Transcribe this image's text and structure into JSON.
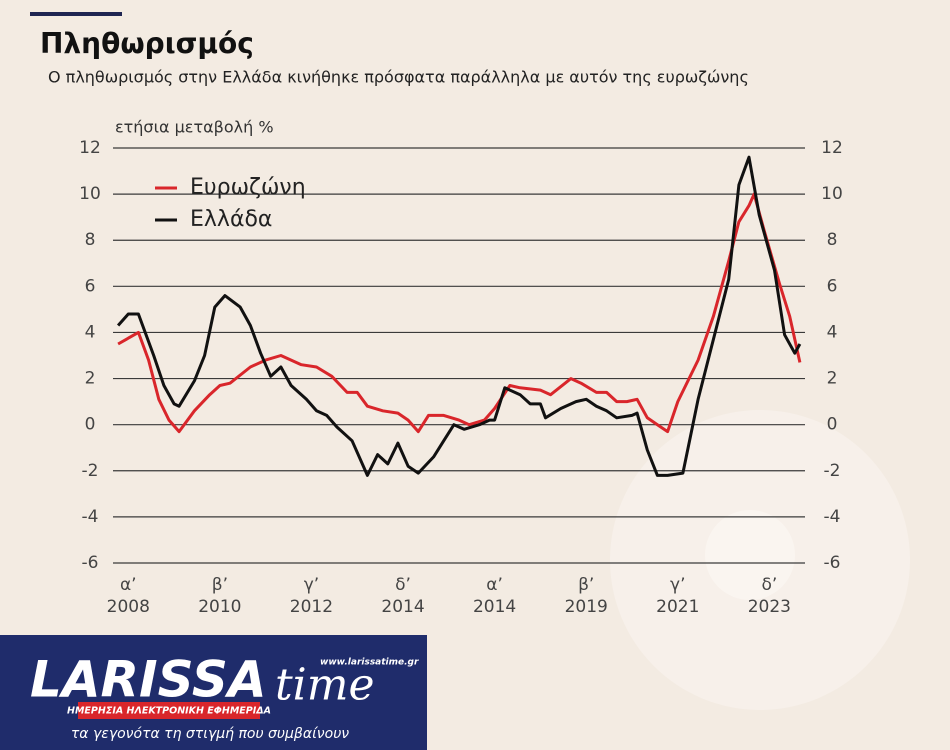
{
  "chart_data": {
    "type": "line",
    "title": "Πληθωρισμός",
    "subtitle": "Ο πληθωρισμός στην Ελλάδα κινήθηκε πρόσφατα παράλληλα με αυτόν της ευρωζώνης",
    "y_label": "ετήσια μεταβολή %",
    "xlim": [
      -1.5,
      66.5
    ],
    "xticks": [
      {
        "value": 0,
        "label": "α’\n2008"
      },
      {
        "value": 9,
        "label": "β’\n2010"
      },
      {
        "value": 18,
        "label": "γ’\n2012"
      },
      {
        "value": 27,
        "label": "δ’\n2014"
      },
      {
        "value": 36,
        "label": "α’\n2014"
      },
      {
        "value": 45,
        "label": "β’\n2019"
      },
      {
        "value": 54,
        "label": "γ’\n2021"
      },
      {
        "value": 63,
        "label": "δ’\n2023"
      }
    ],
    "ylim": [
      -6,
      12
    ],
    "yticks": [
      -6,
      -4,
      -2,
      0,
      2,
      4,
      6,
      8,
      10,
      12
    ],
    "y2lim": [
      -6,
      12
    ],
    "y2ticks": [
      -6,
      -4,
      -2,
      0,
      2,
      4,
      6,
      8,
      10,
      12
    ],
    "grid": true,
    "legend": "upper left",
    "series": [
      {
        "name": "Ευρωζώνη",
        "color": "#d9262b",
        "x": [
          -1,
          1,
          2,
          3,
          4,
          5,
          6.5,
          8,
          9,
          10,
          12,
          13.5,
          15,
          17,
          18.5,
          20,
          21.5,
          22.5,
          23.5,
          25,
          26.5,
          27.5,
          28.5,
          29.5,
          31,
          32.5,
          33.5,
          35,
          36,
          37.5,
          38.5,
          40.5,
          41.5,
          43.5,
          44.5,
          46,
          47,
          48,
          49,
          50,
          51,
          52,
          53,
          54,
          56,
          57.5,
          59,
          60,
          61,
          61.5,
          62.5,
          64,
          65,
          66
        ],
        "values": [
          3.5,
          4.0,
          2.8,
          1.1,
          0.2,
          -0.3,
          0.6,
          1.3,
          1.7,
          1.8,
          2.5,
          2.8,
          3.0,
          2.6,
          2.5,
          2.1,
          1.4,
          1.4,
          0.8,
          0.6,
          0.5,
          0.2,
          -0.3,
          0.4,
          0.4,
          0.2,
          0.0,
          0.2,
          0.7,
          1.7,
          1.6,
          1.5,
          1.3,
          2.0,
          1.8,
          1.4,
          1.4,
          1.0,
          1.0,
          1.1,
          0.3,
          0.0,
          -0.3,
          1.0,
          2.8,
          4.7,
          7.1,
          8.8,
          9.5,
          10.0,
          8.4,
          6.1,
          4.7,
          2.7
        ]
      },
      {
        "name": "Ελλάδα",
        "color": "#111111",
        "x": [
          -1,
          0,
          1,
          2.5,
          3.5,
          4.5,
          5,
          6.5,
          7.5,
          8.5,
          9.5,
          11,
          12,
          13,
          14,
          15,
          16,
          17.5,
          18.5,
          19.5,
          20.5,
          22,
          23.5,
          24.5,
          25.5,
          26.5,
          27.5,
          28.5,
          30,
          31,
          32,
          33,
          34.5,
          35.5,
          36,
          37,
          38.5,
          39.5,
          40.5,
          41,
          42.5,
          44,
          45,
          46,
          47,
          48,
          49.5,
          50,
          51,
          52,
          53,
          54.5,
          56,
          57.5,
          59,
          60,
          61,
          62,
          63.5,
          64.5,
          65.5,
          66
        ],
        "values": [
          4.3,
          4.8,
          4.8,
          3.0,
          1.7,
          0.9,
          0.8,
          1.9,
          3.0,
          5.1,
          5.6,
          5.1,
          4.3,
          3.1,
          2.1,
          2.5,
          1.7,
          1.1,
          0.6,
          0.4,
          -0.1,
          -0.7,
          -2.2,
          -1.3,
          -1.7,
          -0.8,
          -1.8,
          -2.1,
          -1.4,
          -0.7,
          0.0,
          -0.2,
          0.0,
          0.2,
          0.2,
          1.6,
          1.3,
          0.9,
          0.9,
          0.3,
          0.7,
          1.0,
          1.1,
          0.8,
          0.6,
          0.3,
          0.4,
          0.5,
          -1.1,
          -2.2,
          -2.2,
          -2.1,
          1.1,
          3.7,
          6.3,
          10.4,
          11.6,
          9.1,
          6.7,
          3.9,
          3.1,
          3.5
        ]
      }
    ]
  },
  "logo": {
    "brand_left": "LARISSA",
    "brand_right": "time",
    "url": "www.larissatime.gr",
    "tagline": "ΗΜΕΡΗΣΙΑ ΗΛΕΚΤΡΟΝΙΚΗ ΕΦΗΜΕΡΙΔΑ",
    "slogan": "τα γεγονότα τη στιγμή που συμβαίνουν"
  }
}
